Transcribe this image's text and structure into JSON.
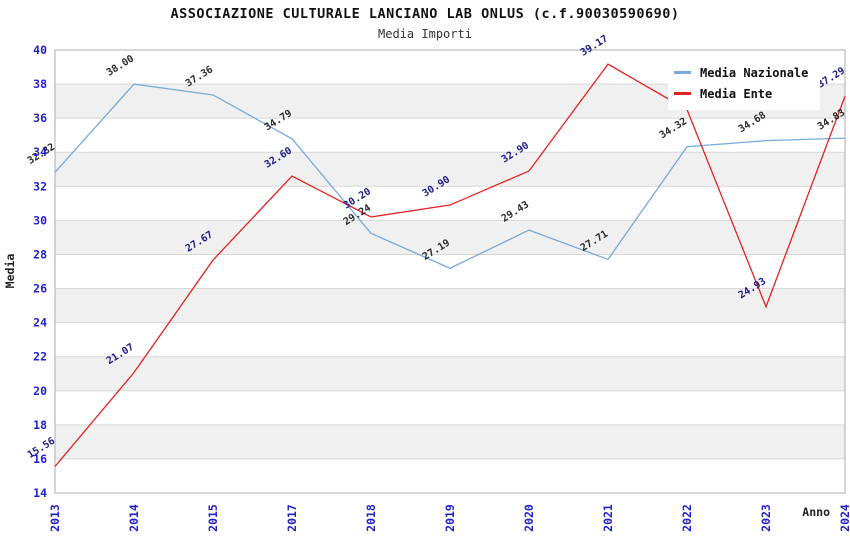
{
  "title": "ASSOCIAZIONE CULTURALE LANCIANO LAB ONLUS (c.f.90030590690)",
  "subtitle": "Media Importi",
  "legend": {
    "items": [
      {
        "label": "Media Nazionale",
        "color": "#76ABDC"
      },
      {
        "label": "Media Ente",
        "color": "#E42222"
      }
    ]
  },
  "axes": {
    "x_label": "Anno",
    "y_label": "Media",
    "y_ticks": [
      14,
      16,
      18,
      20,
      22,
      24,
      26,
      28,
      30,
      32,
      34,
      36,
      38,
      40
    ],
    "tick_color": "#2222CC"
  },
  "chart_data": {
    "type": "line",
    "title": "ASSOCIAZIONE CULTURALE LANCIANO LAB ONLUS (c.f.90030590690)",
    "subtitle": "Media Importi",
    "xlabel": "Anno",
    "ylabel": "Media",
    "ylim": [
      14,
      40
    ],
    "y_tick_step": 2,
    "grid": "horizontal gridlines with alternating gray bands",
    "legend_position": "top-right",
    "categories": [
      "2013",
      "2014",
      "2015",
      "2017",
      "2018",
      "2019",
      "2020",
      "2021",
      "2022",
      "2023",
      "2024"
    ],
    "series": [
      {
        "name": "Media Nazionale",
        "color": "#76ABDC",
        "label_color": "#2B2B2B",
        "values": [
          32.82,
          38.0,
          37.36,
          34.79,
          29.24,
          27.19,
          29.43,
          27.71,
          34.32,
          34.68,
          34.83
        ],
        "labels": [
          "32.82",
          "38.00",
          "37.36",
          "34.79",
          "29.24",
          "27.19",
          "29.43",
          "27.71",
          "34.32",
          "34.68",
          "34.83"
        ]
      },
      {
        "name": "Media Ente",
        "color": "#E42222",
        "label_color": "#1B1B8A",
        "values": [
          15.56,
          21.07,
          27.67,
          32.6,
          30.2,
          30.9,
          32.9,
          39.17,
          36.5,
          24.93,
          37.29
        ],
        "labels": [
          "15.56",
          "21.07",
          "27.67",
          "32.60",
          "30.20",
          "30.90",
          "32.90",
          "39.17",
          "",
          "24.93",
          "37.29"
        ],
        "note": "2022 point label hidden behind legend box; value estimated from gridlines"
      }
    ]
  },
  "colors": {
    "band_gray": "#F0F0F0",
    "gridline": "#D8D8D8",
    "frame": "#ADADAD",
    "axis_text": "#2222CC",
    "axis_title": "#222222"
  }
}
